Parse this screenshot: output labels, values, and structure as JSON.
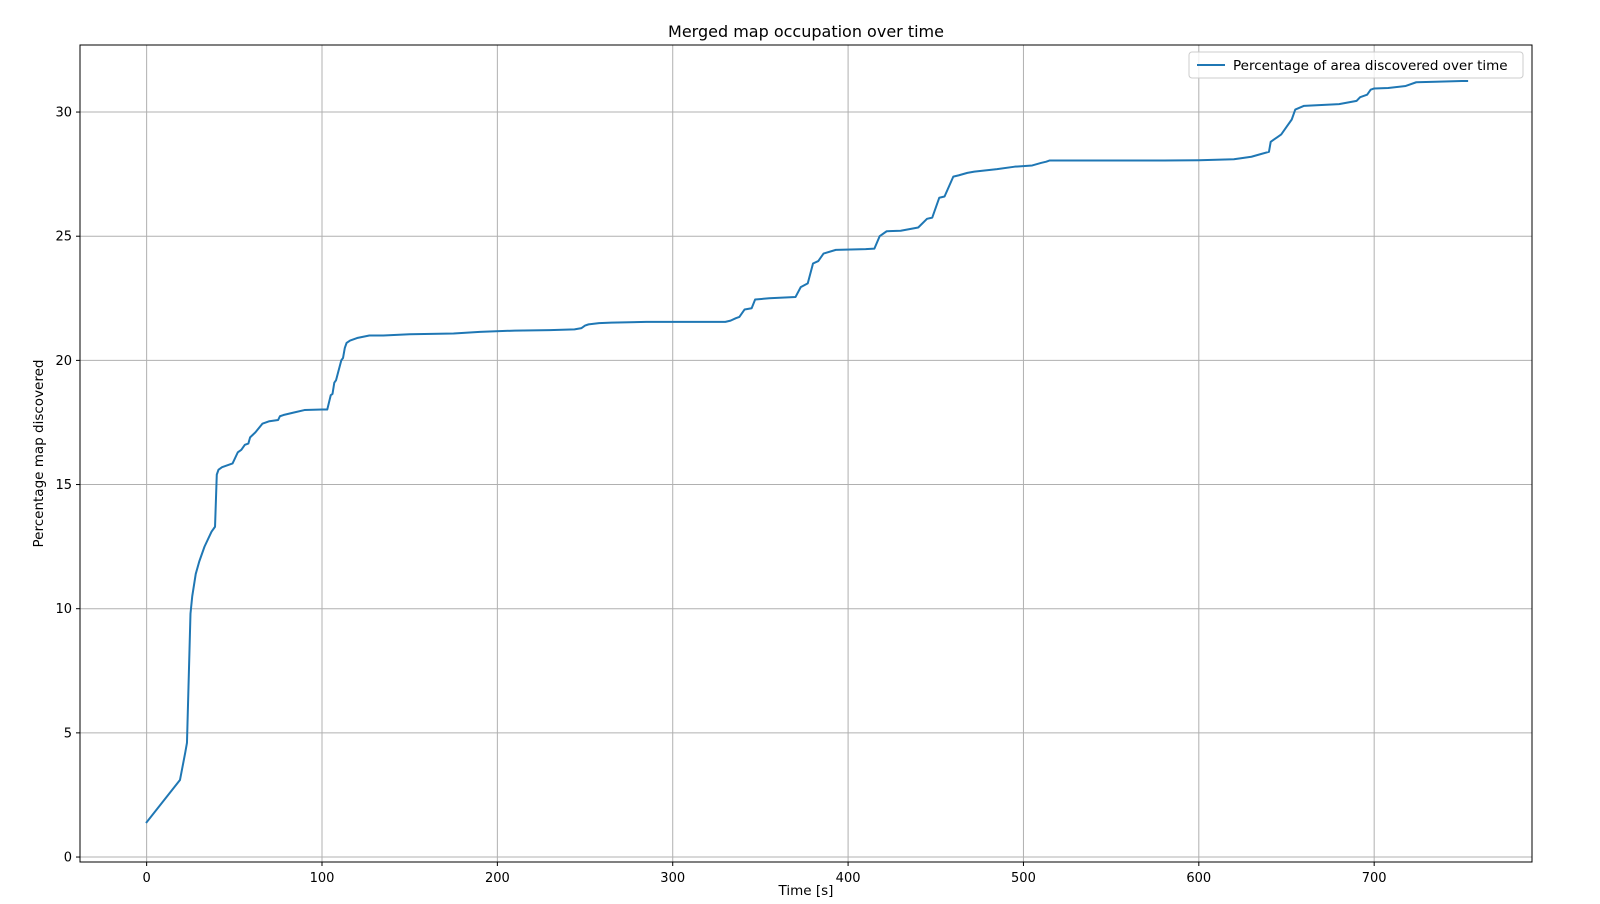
{
  "chart_data": {
    "type": "line",
    "title": "Merged map occupation over time",
    "xlabel": "Time [s]",
    "ylabel": "Percentage map discovered",
    "xlim": [
      -38,
      790
    ],
    "ylim": [
      -0.2,
      32.7
    ],
    "xticks": [
      0,
      100,
      200,
      300,
      400,
      500,
      600,
      700
    ],
    "yticks": [
      0,
      5,
      10,
      15,
      20,
      25,
      30
    ],
    "xtick_labels": [
      "0",
      "100",
      "200",
      "300",
      "400",
      "500",
      "600",
      "700"
    ],
    "ytick_labels": [
      "0",
      "5",
      "10",
      "15",
      "20",
      "25",
      "30"
    ],
    "grid": true,
    "legend_position": "top-right",
    "series": [
      {
        "name": "Percentage of area discovered over time",
        "color": "#1f77b4",
        "x": [
          0,
          19,
          22,
          23,
          25,
          26,
          28,
          30,
          33,
          37,
          39,
          40,
          41,
          43,
          49,
          52,
          54,
          56,
          58,
          59,
          62,
          66,
          70,
          75,
          76,
          78,
          84,
          90,
          100,
          103,
          105,
          106,
          107,
          108,
          111,
          112,
          113,
          114,
          116,
          120,
          127,
          135,
          150,
          175,
          190,
          210,
          230,
          244,
          248,
          250,
          252,
          258,
          265,
          285,
          330,
          333,
          336,
          338,
          341,
          345,
          347,
          355,
          370,
          373,
          377,
          380,
          383,
          386,
          393,
          410,
          415,
          418,
          422,
          430,
          440,
          445,
          448,
          452,
          455,
          460,
          463,
          468,
          472,
          485,
          495,
          505,
          510,
          513,
          515,
          520,
          540,
          580,
          600,
          610,
          620,
          625,
          630,
          635,
          640,
          641,
          643,
          645,
          647,
          650,
          653,
          655,
          660,
          680,
          690,
          692,
          696,
          698,
          700,
          708,
          718,
          724,
          735,
          750,
          753
        ],
        "y": [
          1.4,
          3.1,
          4.2,
          4.6,
          9.8,
          10.5,
          11.4,
          11.9,
          12.5,
          13.1,
          13.3,
          15.4,
          15.6,
          15.7,
          15.85,
          16.3,
          16.4,
          16.6,
          16.65,
          16.9,
          17.1,
          17.45,
          17.55,
          17.6,
          17.75,
          17.8,
          17.9,
          18.0,
          18.02,
          18.02,
          18.6,
          18.65,
          19.1,
          19.2,
          20.0,
          20.1,
          20.5,
          20.7,
          20.8,
          20.9,
          21.0,
          21.0,
          21.05,
          21.08,
          21.15,
          21.2,
          21.22,
          21.25,
          21.3,
          21.4,
          21.45,
          21.5,
          21.52,
          21.55,
          21.55,
          21.6,
          21.7,
          21.75,
          22.05,
          22.1,
          22.45,
          22.5,
          22.55,
          22.95,
          23.1,
          23.9,
          24.0,
          24.3,
          24.45,
          24.48,
          24.5,
          25.0,
          25.2,
          25.22,
          25.35,
          25.7,
          25.75,
          26.55,
          26.6,
          27.4,
          27.45,
          27.55,
          27.6,
          27.7,
          27.8,
          27.85,
          27.95,
          28.0,
          28.05,
          28.05,
          28.05,
          28.05,
          28.06,
          28.08,
          28.1,
          28.15,
          28.2,
          28.3,
          28.4,
          28.8,
          28.9,
          29.0,
          29.1,
          29.4,
          29.7,
          30.1,
          30.25,
          30.32,
          30.45,
          30.6,
          30.7,
          30.9,
          30.95,
          30.97,
          31.05,
          31.2,
          31.22,
          31.25,
          31.25
        ]
      }
    ]
  }
}
